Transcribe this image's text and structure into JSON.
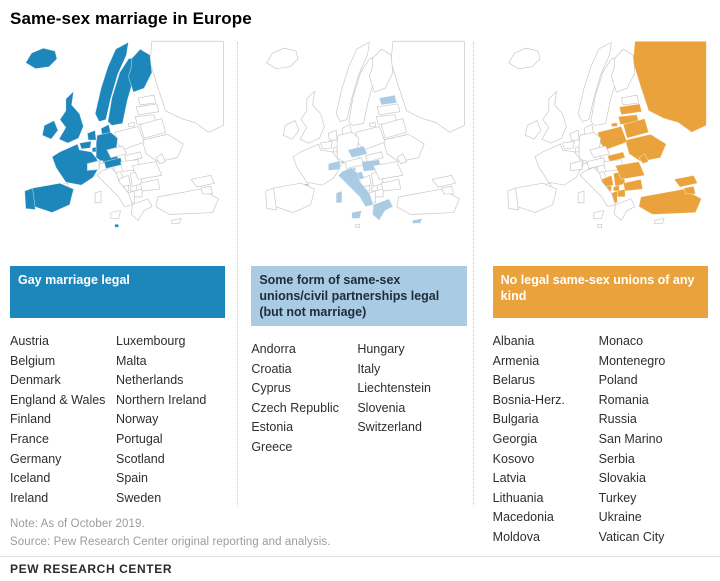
{
  "title": "Same-sex marriage in Europe",
  "colors": {
    "gay_marriage_blue": "#1d87bb",
    "civil_union_light_blue": "#a9cbe3",
    "no_union_orange": "#e9a23c",
    "map_outline": "#c8c8c8"
  },
  "panels": [
    {
      "id": "gay-marriage-legal",
      "legend": "Gay marriage legal",
      "color": "#1d87bb",
      "band_fg": "#ffffff",
      "columns": [
        [
          "Austria",
          "Belgium",
          "Denmark",
          "England & Wales",
          "Finland",
          "France",
          "Germany",
          "Iceland",
          "Ireland"
        ],
        [
          "Luxembourg",
          "Malta",
          "Netherlands",
          "Northern Ireland",
          "Norway",
          "Portugal",
          "Scotland",
          "Spain",
          "Sweden"
        ]
      ],
      "map_highlights": [
        "iceland",
        "norway",
        "sweden",
        "finland",
        "denmark",
        "uk",
        "ireland",
        "netherlands",
        "belgium",
        "luxembourg",
        "germany",
        "france",
        "spain",
        "portugal",
        "austria",
        "malta"
      ]
    },
    {
      "id": "civil-unions-legal",
      "legend": "Some form of same-sex unions/civil partnerships legal (but not marriage)",
      "color": "#a9cbe3",
      "band_fg": "#1f2c38",
      "columns": [
        [
          "Andorra",
          "Croatia",
          "Cyprus",
          "Czech Republic",
          "Estonia",
          "Greece"
        ],
        [
          "Hungary",
          "Italy",
          "Liechtenstein",
          "Slovenia",
          "Switzerland"
        ]
      ],
      "map_highlights": [
        "estonia",
        "czech",
        "hungary",
        "slovenia",
        "croatia",
        "italy",
        "sicily",
        "sardinia",
        "greece",
        "cyprus",
        "switzerland",
        "andorra",
        "liechtenstein"
      ]
    },
    {
      "id": "no-legal-unions",
      "legend": "No legal same-sex unions of any kind",
      "color": "#e9a23c",
      "band_fg": "#ffffff",
      "columns": [
        [
          "Albania",
          "Armenia",
          "Belarus",
          "Bosnia-Herz.",
          "Bulgaria",
          "Georgia",
          "Kosovo",
          "Latvia",
          "Lithuania",
          "Macedonia",
          "Moldova"
        ],
        [
          "Monaco",
          "Montenegro",
          "Poland",
          "Romania",
          "Russia",
          "San Marino",
          "Serbia",
          "Slovakia",
          "Turkey",
          "Ukraine",
          "Vatican City"
        ]
      ],
      "map_highlights": [
        "russia",
        "kaliningrad",
        "latvia",
        "lithuania",
        "belarus",
        "poland",
        "ukraine",
        "moldova",
        "romania",
        "bulgaria",
        "serbia",
        "bosnia",
        "montenegro",
        "kosovo",
        "albania",
        "macedonia",
        "slovakia",
        "turkey",
        "georgia",
        "armenia"
      ]
    }
  ],
  "footer": {
    "note": "Note: As of October 2019.",
    "source": "Source: Pew Research Center original reporting and analysis.",
    "brand": "PEW RESEARCH CENTER"
  }
}
